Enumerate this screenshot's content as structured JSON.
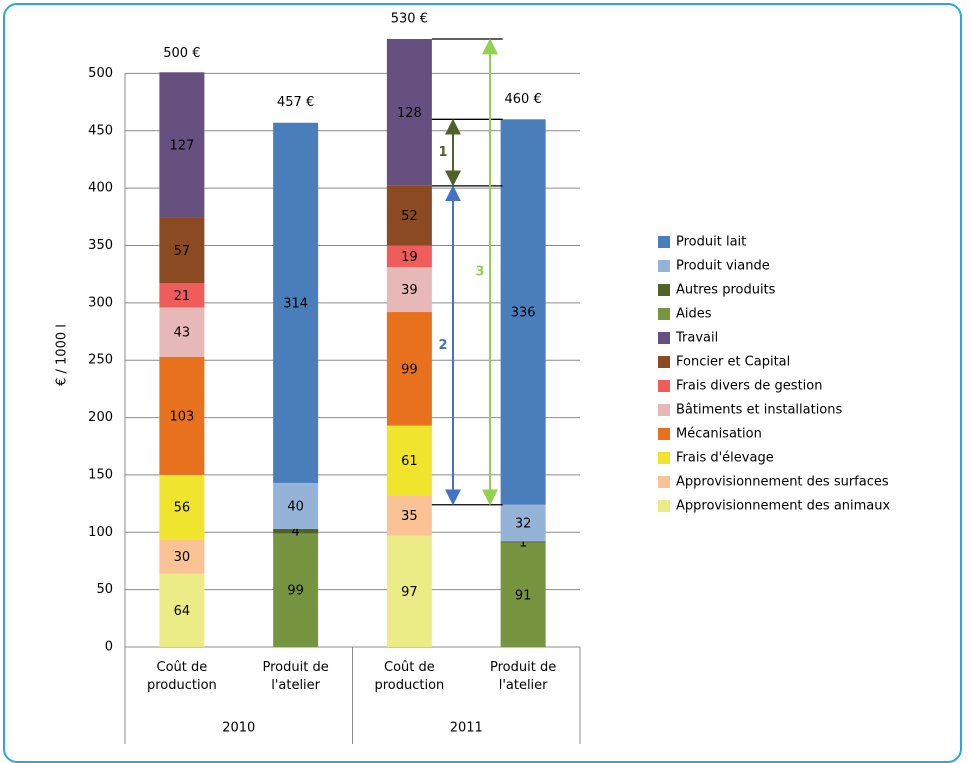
{
  "chart_data": {
    "type": "stacked-bar",
    "y_label": "€ / 1000 l",
    "categories": [
      "Coût de production",
      "Produit de l'atelier",
      "Coût de production",
      "Produit de l'atelier"
    ],
    "groups": [
      "2010",
      "2011"
    ],
    "ylim": [
      0,
      530
    ],
    "yticks": [
      0,
      50,
      100,
      150,
      200,
      250,
      300,
      350,
      400,
      450,
      500
    ],
    "grid": true,
    "series": [
      {
        "name": "Approvisionnement des animaux",
        "color": "#ecec86",
        "values": [
          64,
          null,
          97,
          null
        ]
      },
      {
        "name": "Approvisionnement des surfaces",
        "color": "#fbc296",
        "values": [
          30,
          null,
          35,
          null
        ]
      },
      {
        "name": "Frais d'élevage",
        "color": "#f0e52c",
        "values": [
          56,
          null,
          61,
          null
        ]
      },
      {
        "name": "Mécanisation",
        "color": "#e8711d",
        "values": [
          103,
          null,
          99,
          null
        ]
      },
      {
        "name": "Bâtiments et installations",
        "color": "#e6b9b8",
        "values": [
          43,
          null,
          39,
          null
        ]
      },
      {
        "name": "Frais divers de gestion",
        "color": "#ee5c5c",
        "values": [
          21,
          null,
          19,
          null
        ]
      },
      {
        "name": "Foncier et Capital",
        "color": "#8b4a22",
        "values": [
          57,
          null,
          52,
          null
        ]
      },
      {
        "name": "Travail",
        "color": "#65507f",
        "values": [
          127,
          null,
          128,
          null
        ]
      },
      {
        "name": "Aides",
        "color": "#779440",
        "values": [
          null,
          99,
          null,
          91
        ]
      },
      {
        "name": "Autres produits",
        "color": "#4f6228",
        "values": [
          null,
          4,
          null,
          1
        ]
      },
      {
        "name": "Produit viande",
        "color": "#95b3d7",
        "values": [
          null,
          40,
          null,
          32
        ]
      },
      {
        "name": "Produit lait",
        "color": "#4a7ebb",
        "values": [
          null,
          314,
          null,
          336
        ]
      }
    ],
    "totals": {
      "values": [
        500,
        457,
        530,
        460
      ],
      "value_labels": [
        "500 €",
        "457 €",
        "530 €",
        "460 €"
      ]
    },
    "annotations": [
      {
        "label": "1",
        "color": "#4f6228"
      },
      {
        "label": "2",
        "color": "#4472c4"
      },
      {
        "label": "3",
        "color": "#92d050"
      }
    ]
  }
}
